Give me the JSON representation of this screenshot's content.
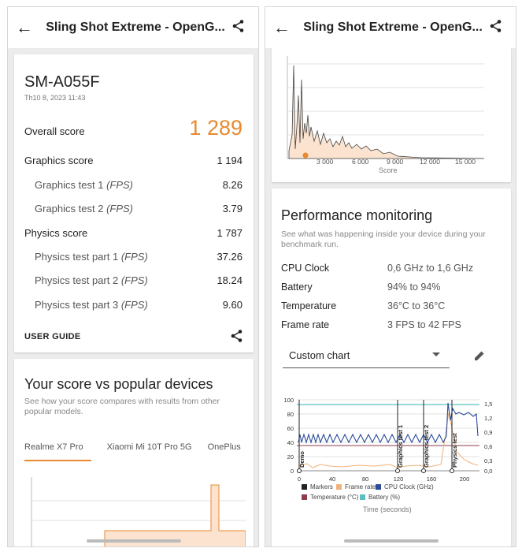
{
  "left": {
    "title": "Sling Shot Extreme - OpenG...",
    "icons": {
      "back": "back-arrow-icon",
      "share": "share-icon"
    },
    "summary": {
      "device": "SM-A055F",
      "date": "Th10 8, 2023 11:43",
      "overall_label": "Overall score",
      "overall_value": "1 289",
      "graphics_label": "Graphics score",
      "graphics_value": "1 194",
      "gt1_label": "Graphics test 1",
      "gt1_value": "8.26",
      "gt2_label": "Graphics test 2",
      "gt2_value": "3.79",
      "physics_label": "Physics score",
      "physics_value": "1 787",
      "pt1_label": "Physics test part 1",
      "pt1_value": "37.26",
      "pt2_label": "Physics test part 2",
      "pt2_value": "18.24",
      "pt3_label": "Physics test part 3",
      "pt3_value": "9.60",
      "fps_unit": "(FPS)",
      "user_guide": "USER GUIDE"
    },
    "popular": {
      "title": "Your score vs popular devices",
      "description": "See how your score compares with results from other popular models.",
      "tabs": [
        "Realme X7 Pro",
        "Xiaomi Mi 10T Pro 5G",
        "OnePlus"
      ],
      "active_tab": 0
    }
  },
  "right": {
    "title": "Sling Shot Extreme - OpenG...",
    "distribution_chart": {
      "xlabel": "Score",
      "xticks": [
        "3 000",
        "6 000",
        "9 000",
        "12 000",
        "15 000"
      ]
    },
    "performance": {
      "title": "Performance monitoring",
      "description": "See what was happening inside your device during your benchmark run.",
      "rows": [
        {
          "label": "CPU Clock",
          "value": "0,6 GHz to 1,6 GHz"
        },
        {
          "label": "Battery",
          "value": "94% to 94%"
        },
        {
          "label": "Temperature",
          "value": "36°C to 36°C"
        },
        {
          "label": "Frame rate",
          "value": "3 FPS to 42 FPS"
        }
      ],
      "select_value": "Custom chart",
      "icons": {
        "edit": "pencil-icon"
      }
    },
    "monitor_chart": {
      "y_left_ticks": [
        "100",
        "80",
        "60",
        "40",
        "20",
        "0"
      ],
      "y_right_ticks": [
        "1,5",
        "1,2",
        "0,9",
        "0,6",
        "0,3",
        "0,0"
      ],
      "x_ticks": [
        "0",
        "40",
        "80",
        "120",
        "160",
        "200"
      ],
      "markers": [
        "Demo",
        "Graphics test 1",
        "Graphics test 2",
        "Physics test"
      ],
      "legend": [
        {
          "name": "Markers",
          "color": "#222222"
        },
        {
          "name": "Frame rate",
          "color": "#f0b27a"
        },
        {
          "name": "CPU Clock (GHz)",
          "color": "#2a4c9c"
        },
        {
          "name": "Temperature (°C)",
          "color": "#8e3b4c"
        },
        {
          "name": "Battery (%)",
          "color": "#5bc0be"
        }
      ],
      "xlabel": "Time (seconds)"
    }
  },
  "colors": {
    "accent": "#e8892f",
    "cpu": "#2a4c9c",
    "battery": "#5bc0be",
    "fps": "#f0b27a"
  }
}
